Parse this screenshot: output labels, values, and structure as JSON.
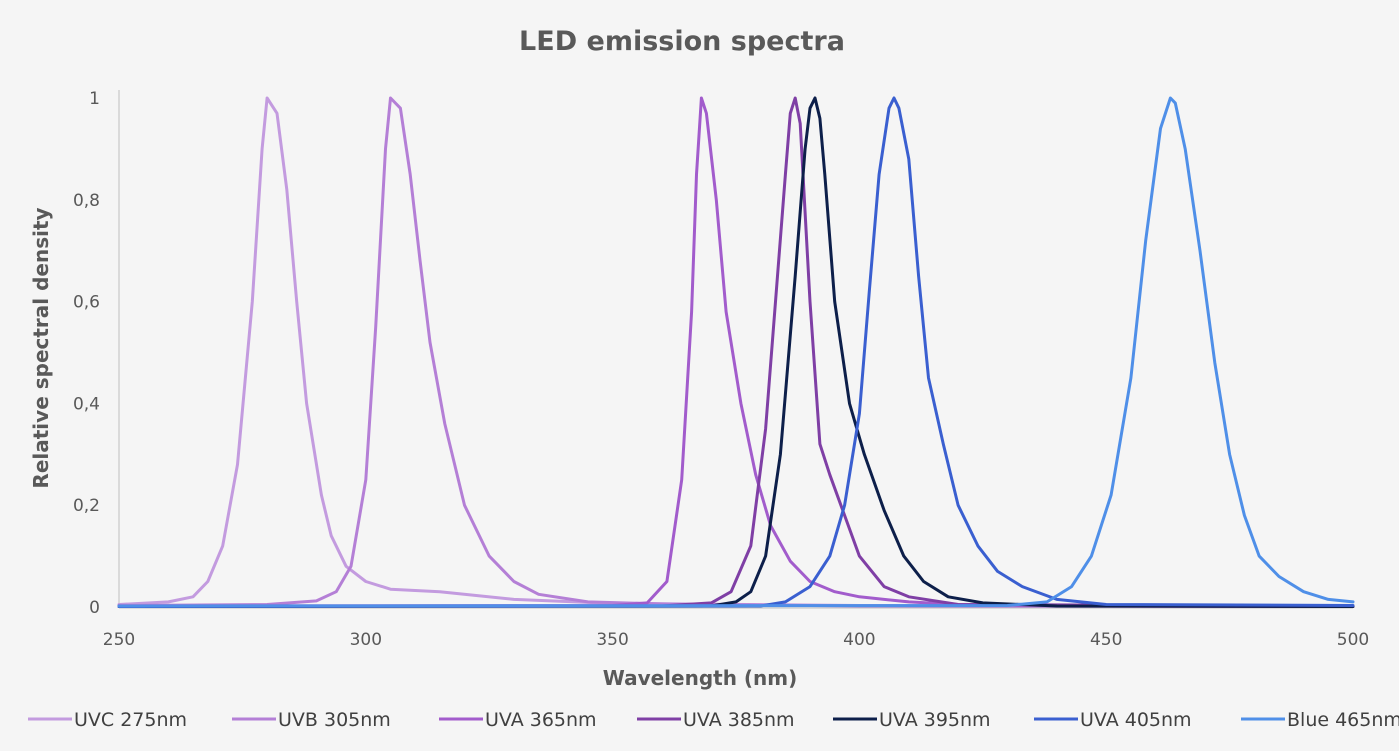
{
  "chart_data": {
    "type": "line",
    "title": "LED emission spectra",
    "xlabel": "Wavelength (nm)",
    "ylabel": "Relative spectral density",
    "xlim": [
      250,
      500
    ],
    "ylim": [
      0,
      1
    ],
    "x_ticks": [
      "250",
      "300",
      "350",
      "400",
      "450",
      "500"
    ],
    "y_ticks": [
      "0",
      "0,2",
      "0,4",
      "0,6",
      "0,8",
      "1"
    ],
    "grid": false,
    "legend_position": "bottom",
    "series": [
      {
        "name": "UVC 275nm",
        "color": "#c39bdf",
        "x": [
          250,
          260,
          265,
          268,
          271,
          274,
          277,
          279,
          280,
          282,
          284,
          286,
          288,
          291,
          293,
          296,
          300,
          305,
          315,
          330,
          350,
          400,
          500
        ],
        "y": [
          0.005,
          0.01,
          0.02,
          0.05,
          0.12,
          0.28,
          0.6,
          0.9,
          1.0,
          0.97,
          0.82,
          0.6,
          0.4,
          0.22,
          0.14,
          0.08,
          0.05,
          0.035,
          0.03,
          0.015,
          0.007,
          0.003,
          0.001
        ]
      },
      {
        "name": "UVB 305nm",
        "color": "#b47fd6",
        "x": [
          250,
          280,
          290,
          294,
          297,
          300,
          302,
          304,
          305,
          307,
          309,
          311,
          313,
          316,
          320,
          325,
          330,
          335,
          345,
          360,
          400,
          500
        ],
        "y": [
          0.003,
          0.005,
          0.012,
          0.03,
          0.08,
          0.25,
          0.55,
          0.9,
          1.0,
          0.98,
          0.85,
          0.68,
          0.52,
          0.36,
          0.2,
          0.1,
          0.05,
          0.025,
          0.01,
          0.006,
          0.002,
          0.001
        ]
      },
      {
        "name": "UVA 365nm",
        "color": "#a25ccc",
        "x": [
          250,
          350,
          357,
          361,
          364,
          366,
          367,
          368,
          369,
          371,
          373,
          376,
          379,
          382,
          386,
          390,
          395,
          400,
          410,
          420,
          450,
          500
        ],
        "y": [
          0.002,
          0.003,
          0.008,
          0.05,
          0.25,
          0.58,
          0.85,
          1.0,
          0.97,
          0.8,
          0.58,
          0.4,
          0.26,
          0.16,
          0.09,
          0.05,
          0.03,
          0.02,
          0.01,
          0.005,
          0.002,
          0.001
        ]
      },
      {
        "name": "UVA 385nm",
        "color": "#7f3fa5",
        "x": [
          250,
          360,
          370,
          374,
          378,
          381,
          383,
          385,
          386,
          387,
          388,
          390,
          392,
          394,
          397,
          400,
          405,
          410,
          420,
          500
        ],
        "y": [
          0.002,
          0.002,
          0.008,
          0.03,
          0.12,
          0.35,
          0.6,
          0.85,
          0.97,
          1.0,
          0.95,
          0.6,
          0.32,
          0.26,
          0.18,
          0.1,
          0.04,
          0.02,
          0.005,
          0.002
        ]
      },
      {
        "name": "UVA 395nm",
        "color": "#0d1f4a",
        "x": [
          250,
          370,
          375,
          378,
          381,
          384,
          387,
          389,
          390,
          391,
          392,
          393,
          395,
          398,
          401,
          405,
          409,
          413,
          418,
          425,
          440,
          500
        ],
        "y": [
          0.001,
          0.002,
          0.01,
          0.03,
          0.1,
          0.3,
          0.65,
          0.9,
          0.98,
          1.0,
          0.96,
          0.85,
          0.6,
          0.4,
          0.3,
          0.19,
          0.1,
          0.05,
          0.02,
          0.008,
          0.002,
          0.001
        ]
      },
      {
        "name": "UVA 405nm",
        "color": "#3a5fd0",
        "x": [
          250,
          380,
          385,
          390,
          394,
          397,
          400,
          402,
          404,
          406,
          407,
          408,
          410,
          412,
          414,
          417,
          420,
          424,
          428,
          433,
          440,
          450,
          500
        ],
        "y": [
          0.001,
          0.002,
          0.01,
          0.04,
          0.1,
          0.2,
          0.38,
          0.62,
          0.85,
          0.98,
          1.0,
          0.98,
          0.88,
          0.65,
          0.45,
          0.32,
          0.2,
          0.12,
          0.07,
          0.04,
          0.015,
          0.005,
          0.003
        ]
      },
      {
        "name": "Blue 465nm",
        "color": "#4f8fe8",
        "x": [
          250,
          430,
          438,
          443,
          447,
          451,
          455,
          458,
          461,
          463,
          464,
          466,
          469,
          472,
          475,
          478,
          481,
          485,
          490,
          495,
          500
        ],
        "y": [
          0.002,
          0.003,
          0.01,
          0.04,
          0.1,
          0.22,
          0.45,
          0.72,
          0.94,
          1.0,
          0.99,
          0.9,
          0.7,
          0.48,
          0.3,
          0.18,
          0.1,
          0.06,
          0.03,
          0.015,
          0.01
        ]
      }
    ]
  }
}
